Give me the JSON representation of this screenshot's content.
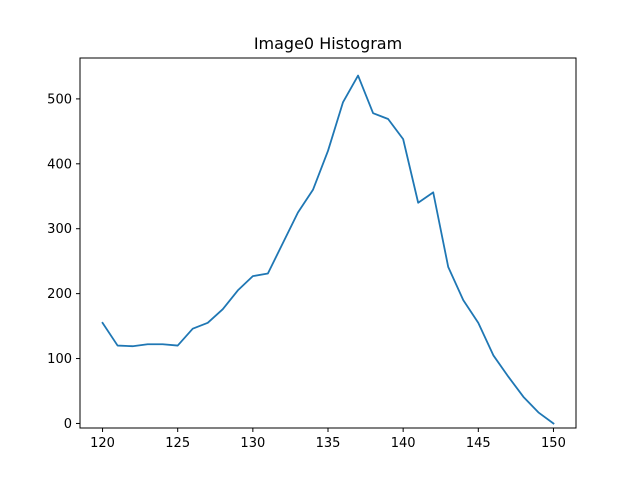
{
  "chart_data": {
    "type": "line",
    "title": "Image0 Histogram",
    "xlabel": "",
    "ylabel": "",
    "xlim": [
      118.5,
      151.5
    ],
    "ylim": [
      -7,
      563
    ],
    "x_ticks": [
      120,
      125,
      130,
      135,
      140,
      145,
      150
    ],
    "y_ticks": [
      0,
      100,
      200,
      300,
      400,
      500
    ],
    "grid": false,
    "series": [
      {
        "color": "#1f77b4",
        "x": [
          120,
          121,
          122,
          123,
          124,
          125,
          126,
          127,
          128,
          129,
          130,
          131,
          132,
          133,
          134,
          135,
          136,
          137,
          138,
          139,
          140,
          141,
          142,
          143,
          144,
          145,
          146,
          147,
          148,
          149,
          150
        ],
        "values": [
          155,
          120,
          119,
          122,
          122,
          120,
          146,
          155,
          176,
          205,
          227,
          231,
          278,
          325,
          360,
          420,
          495,
          536,
          478,
          469,
          438,
          340,
          356,
          241,
          190,
          155,
          105,
          72,
          41,
          17,
          0
        ]
      }
    ]
  }
}
